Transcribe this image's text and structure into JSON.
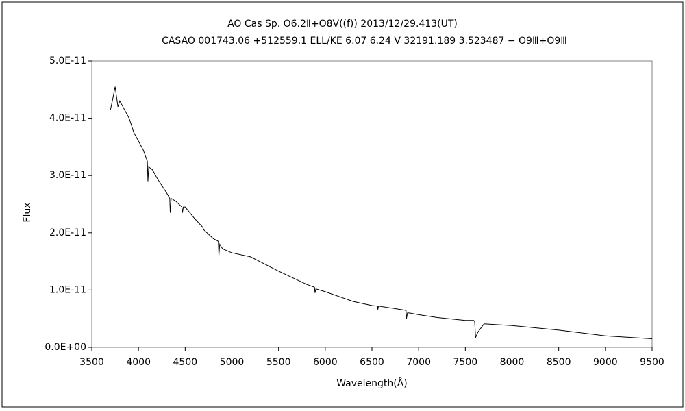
{
  "chart_data": {
    "type": "line",
    "title": "AO Cas    Sp. O6.2Ⅱ+O8V((f))    2013/12/29.413(UT)",
    "subtitle": "CASAO 001743.06 +512559.1 ELL/KE 6.07 6.24 V 32191.189 3.523487 − O9Ⅲ+O9Ⅲ",
    "x_label": "Wavelength(Å)",
    "y_label": "Flux",
    "x": [
      3700,
      3720,
      3750,
      3780,
      3800,
      3850,
      3900,
      3950,
      4000,
      4050,
      4095,
      4101,
      4110,
      4150,
      4200,
      4300,
      4335,
      4340,
      4350,
      4400,
      4465,
      4471,
      4480,
      4500,
      4600,
      4686,
      4700,
      4800,
      4855,
      4861,
      4870,
      4900,
      5000,
      5200,
      5500,
      5800,
      5885,
      5890,
      5900,
      6000,
      6300,
      6500,
      6560,
      6563,
      6570,
      6850,
      6865,
      6870,
      6880,
      6900,
      7000,
      7200,
      7500,
      7590,
      7600,
      7610,
      7630,
      7650,
      7700,
      8000,
      8500,
      9000,
      9500
    ],
    "series": [
      {
        "name": "Flux",
        "color": "#000000",
        "values": [
          4.15e-11,
          4.3e-11,
          4.55e-11,
          4.2e-11,
          4.3e-11,
          4.15e-11,
          4e-11,
          3.75e-11,
          3.6e-11,
          3.45e-11,
          3.25e-11,
          2.9e-11,
          3.15e-11,
          3.1e-11,
          2.95e-11,
          2.7e-11,
          2.6e-11,
          2.35e-11,
          2.6e-11,
          2.55e-11,
          2.45e-11,
          2.35e-11,
          2.45e-11,
          2.45e-11,
          2.25e-11,
          2.1e-11,
          2.05e-11,
          1.9e-11,
          1.85e-11,
          1.6e-11,
          1.8e-11,
          1.72e-11,
          1.65e-11,
          1.58e-11,
          1.33e-11,
          1.1e-11,
          1.05e-11,
          9.5e-12,
          1.02e-11,
          9.7e-12,
          8e-12,
          7.3e-12,
          7.2e-12,
          6.6e-12,
          7.2e-12,
          6.5e-12,
          6.4e-12,
          5e-12,
          6e-12,
          6e-12,
          5.7e-12,
          5.2e-12,
          4.7e-12,
          4.7e-12,
          4.5e-12,
          1.7e-12,
          2.5e-12,
          3e-12,
          4.1e-12,
          3.8e-12,
          3e-12,
          2e-12,
          1.5e-12
        ]
      }
    ],
    "xlim": [
      3500,
      9500
    ],
    "xticks": [
      3500,
      4000,
      4500,
      5000,
      5500,
      6000,
      6500,
      7000,
      7500,
      8000,
      8500,
      9000,
      9500
    ],
    "ylim": [
      0,
      5e-11
    ],
    "yticks": [
      {
        "value": 0,
        "label": "0.0E+00"
      },
      {
        "value": 1e-11,
        "label": "1.0E-11"
      },
      {
        "value": 2e-11,
        "label": "2.0E-11"
      },
      {
        "value": 3e-11,
        "label": "3.0E-11"
      },
      {
        "value": 4e-11,
        "label": "4.0E-11"
      },
      {
        "value": 5e-11,
        "label": "5.0E-11"
      }
    ],
    "grid": false
  }
}
